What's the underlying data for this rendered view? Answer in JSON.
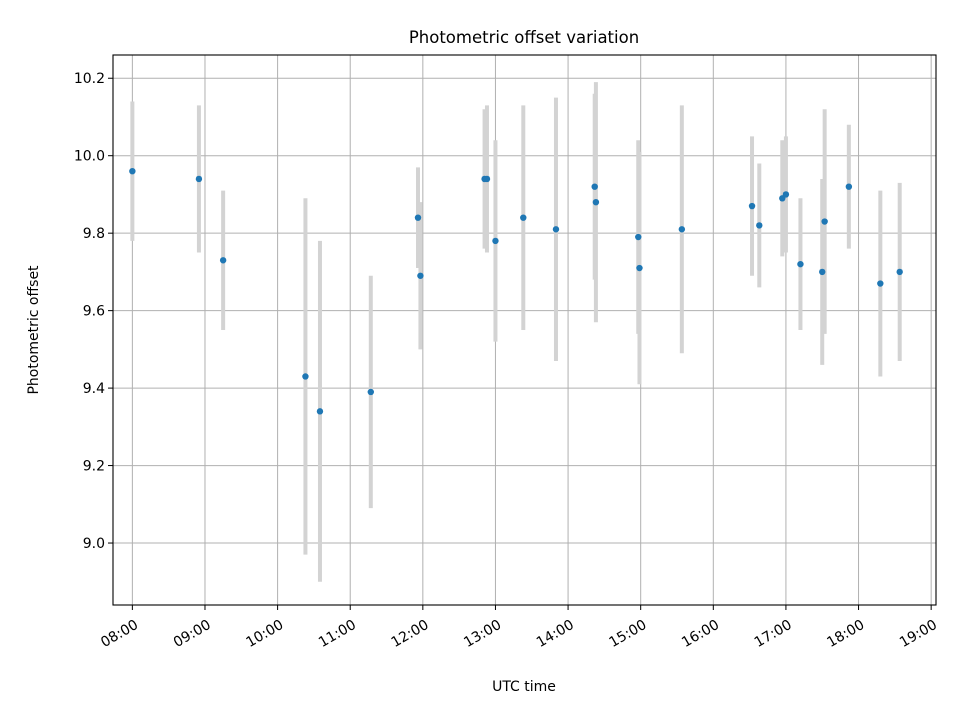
{
  "chart_data": {
    "type": "scatter",
    "title": "Photometric offset variation",
    "xlabel": "UTC time",
    "ylabel": "Photometric offset",
    "x_tick_labels": [
      "08:00",
      "09:00",
      "10:00",
      "11:00",
      "12:00",
      "13:00",
      "14:00",
      "15:00",
      "16:00",
      "17:00",
      "18:00",
      "19:00"
    ],
    "y_tick_labels": [
      "9.0",
      "9.2",
      "9.4",
      "9.6",
      "9.8",
      "10.0",
      "10.2"
    ],
    "xlim": [
      "07:44",
      "19:04"
    ],
    "ylim": [
      8.84,
      10.26
    ],
    "grid": true,
    "marker_color": "#1f77b4",
    "errorbar_color": "#d3d3d3",
    "points": [
      {
        "x": "08:00",
        "y": 9.96,
        "err": 0.18
      },
      {
        "x": "08:55",
        "y": 9.94,
        "err": 0.19
      },
      {
        "x": "09:15",
        "y": 9.73,
        "err": 0.18
      },
      {
        "x": "10:23",
        "y": 9.43,
        "err": 0.46
      },
      {
        "x": "10:35",
        "y": 9.34,
        "err": 0.44
      },
      {
        "x": "11:17",
        "y": 9.39,
        "err": 0.3
      },
      {
        "x": "11:56",
        "y": 9.84,
        "err": 0.13
      },
      {
        "x": "11:58",
        "y": 9.69,
        "err": 0.19
      },
      {
        "x": "12:51",
        "y": 9.94,
        "err": 0.18
      },
      {
        "x": "12:53",
        "y": 9.94,
        "err": 0.19
      },
      {
        "x": "13:00",
        "y": 9.78,
        "err": 0.26
      },
      {
        "x": "13:23",
        "y": 9.84,
        "err": 0.29
      },
      {
        "x": "13:50",
        "y": 9.81,
        "err": 0.34
      },
      {
        "x": "14:22",
        "y": 9.92,
        "err": 0.24
      },
      {
        "x": "14:23",
        "y": 9.88,
        "err": 0.31
      },
      {
        "x": "14:58",
        "y": 9.79,
        "err": 0.25
      },
      {
        "x": "14:59",
        "y": 9.71,
        "err": 0.3
      },
      {
        "x": "15:34",
        "y": 9.81,
        "err": 0.32
      },
      {
        "x": "16:32",
        "y": 9.87,
        "err": 0.18
      },
      {
        "x": "16:38",
        "y": 9.82,
        "err": 0.16
      },
      {
        "x": "16:57",
        "y": 9.89,
        "err": 0.15
      },
      {
        "x": "17:00",
        "y": 9.9,
        "err": 0.15
      },
      {
        "x": "17:12",
        "y": 9.72,
        "err": 0.17
      },
      {
        "x": "17:30",
        "y": 9.7,
        "err": 0.24
      },
      {
        "x": "17:32",
        "y": 9.83,
        "err": 0.29
      },
      {
        "x": "17:52",
        "y": 9.92,
        "err": 0.16
      },
      {
        "x": "18:18",
        "y": 9.67,
        "err": 0.24
      },
      {
        "x": "18:34",
        "y": 9.7,
        "err": 0.23
      }
    ]
  }
}
